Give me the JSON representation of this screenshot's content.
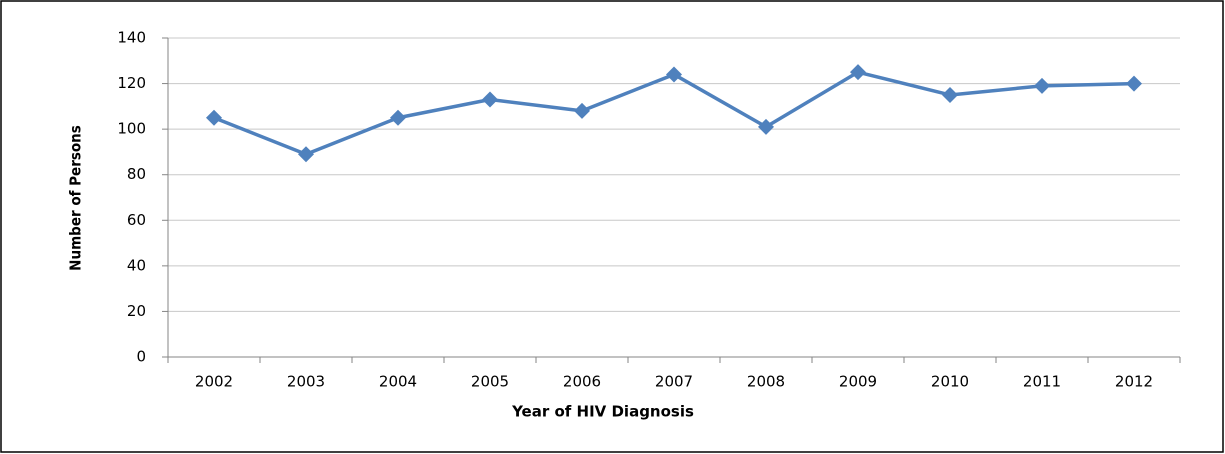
{
  "chart_data": {
    "type": "line",
    "x_label": "Year of HIV Diagnosis",
    "y_label": "Number of Persons",
    "categories": [
      "2002",
      "2003",
      "2004",
      "2005",
      "2006",
      "2007",
      "2008",
      "2009",
      "2010",
      "2011",
      "2012"
    ],
    "values": [
      105,
      89,
      105,
      113,
      108,
      124,
      101,
      125,
      115,
      119,
      120
    ],
    "color": "#4f81bd",
    "ylim": [
      0,
      140
    ],
    "yticks": [
      0,
      20,
      40,
      60,
      80,
      100,
      120,
      140
    ],
    "grid": true
  }
}
